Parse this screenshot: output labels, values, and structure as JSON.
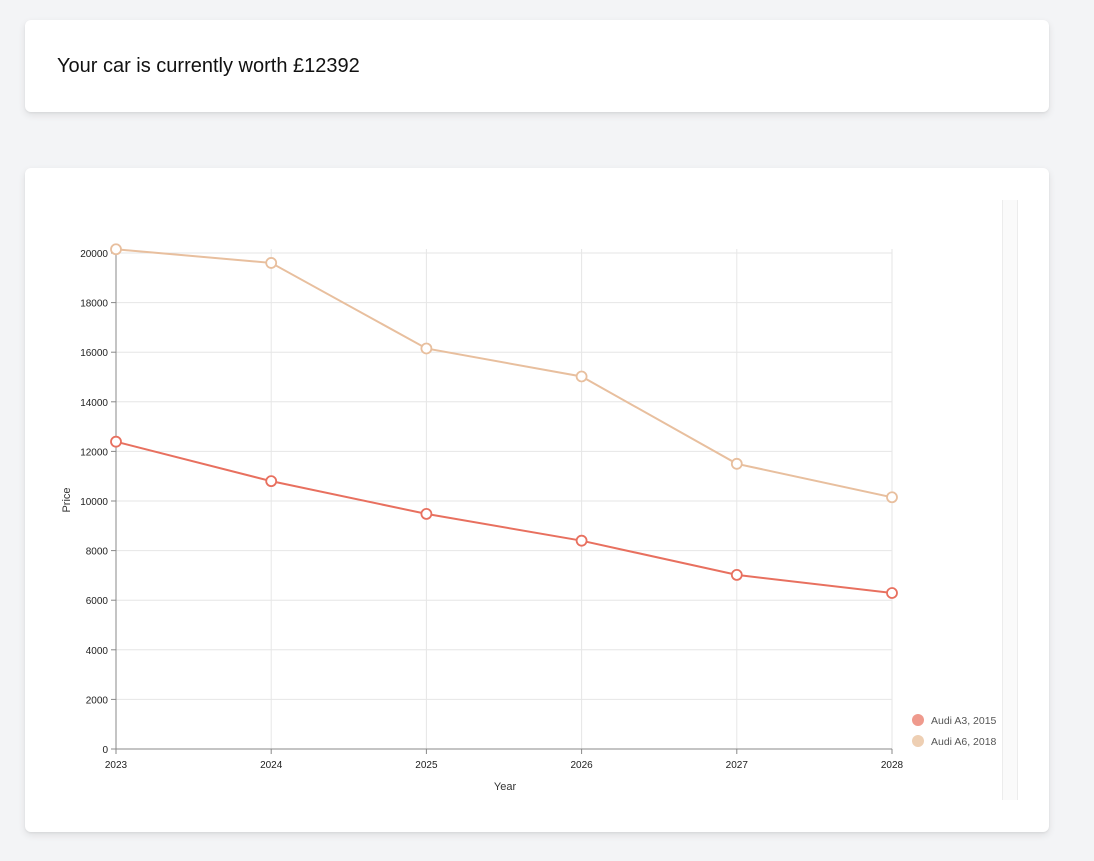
{
  "summary": {
    "worth_text": "Your car is currently worth £12392"
  },
  "chart_data": {
    "type": "line",
    "xlabel": "Year",
    "ylabel": "Price",
    "x": [
      2023,
      2024,
      2025,
      2026,
      2027,
      2028
    ],
    "ylim": [
      0,
      20000
    ],
    "yticks": [
      0,
      2000,
      4000,
      6000,
      8000,
      10000,
      12000,
      14000,
      16000,
      18000,
      20000
    ],
    "grid": true,
    "legend_position": "bottom-right",
    "series": [
      {
        "name": "Audi A3, 2015",
        "color": "#e8705f",
        "legend_color": "#ef9a8d",
        "values": [
          12392,
          10800,
          9480,
          8400,
          7020,
          6290
        ]
      },
      {
        "name": "Audi A6, 2018",
        "color": "#e8bf9e",
        "legend_color": "#eecfb3",
        "values": [
          20150,
          19600,
          16150,
          15020,
          11500,
          10150
        ]
      }
    ]
  }
}
